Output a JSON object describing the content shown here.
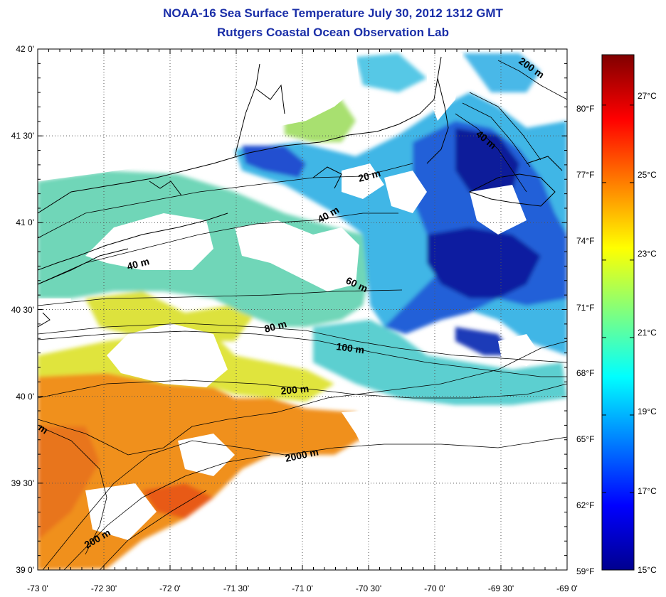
{
  "title": "NOAA-16 Sea Surface Temperature July 30, 2012 1312 GMT",
  "subtitle": "Rutgers Coastal Ocean Observation Lab",
  "map": {
    "lon_range": [
      -73.0,
      -69.0
    ],
    "lat_range": [
      39.0,
      42.0
    ],
    "x_ticks": [
      "-73 0'",
      "-72 30'",
      "-72 0'",
      "-71 30'",
      "-71 0'",
      "-70 30'",
      "-70 0'",
      "-69 30'",
      "-69 0'"
    ],
    "y_ticks": [
      "42 0'",
      "41 30'",
      "41 0'",
      "40 30'",
      "40 0'",
      "39 30'",
      "39 0'"
    ],
    "grid": "dotted",
    "contour_labels": [
      "20 m",
      "40 m",
      "40 m",
      "40 m",
      "60 m",
      "80 m",
      "100 m",
      "200 m",
      "200 m",
      "200 m",
      "2000 m",
      "m"
    ],
    "colors": {
      "land": "#ffffff",
      "cold": "#0a1a9a",
      "cool": "#29b6e8",
      "mid": "#6fd8a8",
      "warm": "#e8e83a",
      "hot": "#f08a1e"
    }
  },
  "colorbar": {
    "celsius_labels": [
      "27°C",
      "25°C",
      "23°C",
      "21°C",
      "19°C",
      "17°C",
      "15°C"
    ],
    "celsius_values": [
      27,
      25,
      23,
      21,
      19,
      17,
      15
    ],
    "fahrenheit_labels": [
      "80°F",
      "77°F",
      "74°F",
      "71°F",
      "68°F",
      "65°F",
      "62°F",
      "59°F"
    ],
    "fahrenheit_values": [
      80,
      77,
      74,
      71,
      68,
      65,
      62,
      59
    ],
    "range_c": [
      15,
      28.3
    ]
  }
}
